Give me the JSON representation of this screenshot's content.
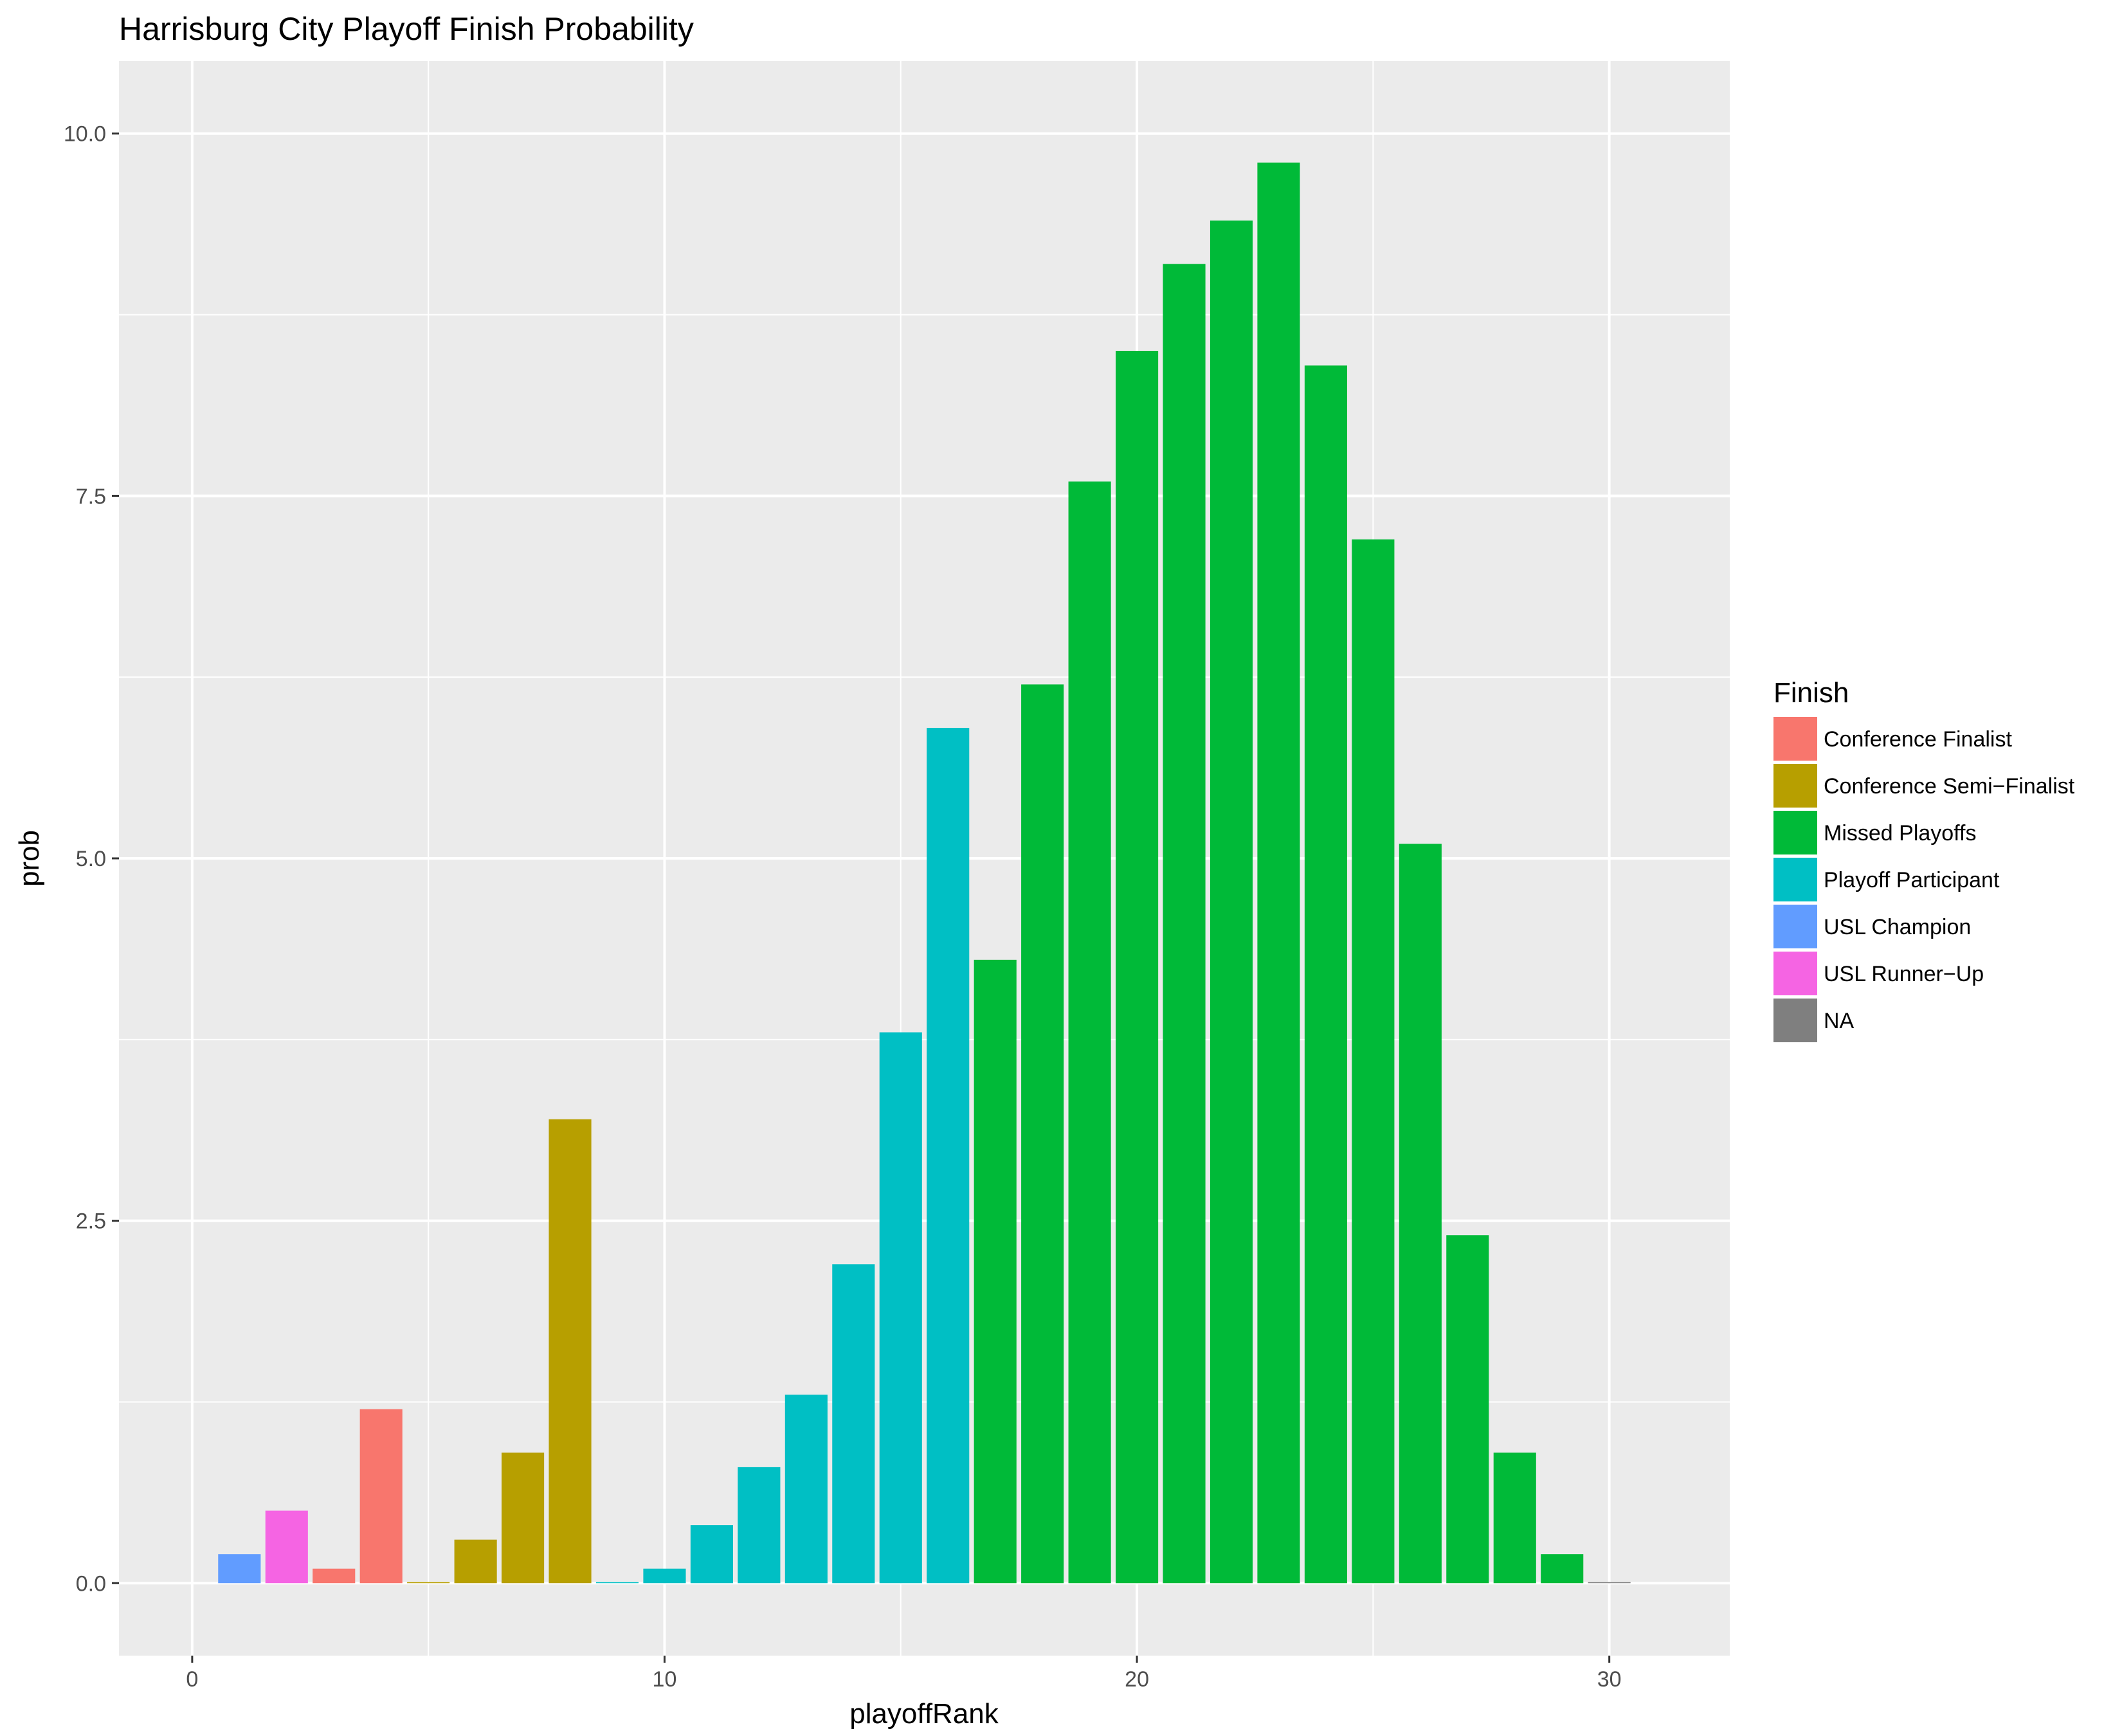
{
  "chart_data": {
    "type": "bar",
    "title": "Harrisburg City Playoff Finish Probability",
    "xlabel": "playoffRank",
    "ylabel": "prob",
    "xlim": [
      -1.55,
      32.55
    ],
    "ylim": [
      -0.5,
      10.5
    ],
    "x_ticks": [
      0,
      10,
      20,
      30
    ],
    "x_tick_labels": [
      "0",
      "10",
      "20",
      "30"
    ],
    "y_ticks": [
      0,
      2.5,
      5,
      7.5,
      10
    ],
    "y_tick_labels": [
      "0.0",
      "2.5",
      "5.0",
      "7.5",
      "10.0"
    ],
    "grid": true,
    "legend": {
      "title": "Finish",
      "position": "right",
      "entries": [
        {
          "name": "Conference Finalist",
          "color": "#F8766D"
        },
        {
          "name": "Conference Semi−Finalist",
          "color": "#B79F00"
        },
        {
          "name": "Missed Playoffs",
          "color": "#00BA38"
        },
        {
          "name": "Playoff Participant",
          "color": "#00BFC4"
        },
        {
          "name": "USL Champion",
          "color": "#619CFF"
        },
        {
          "name": "USL Runner−Up",
          "color": "#F564E3"
        },
        {
          "name": "NA",
          "color": "#7F7F7F"
        }
      ]
    },
    "bars": [
      {
        "x": 1,
        "y": 0.2,
        "finish": "USL Champion"
      },
      {
        "x": 2,
        "y": 0.5,
        "finish": "USL Runner−Up"
      },
      {
        "x": 3,
        "y": 0.1,
        "finish": "Conference Finalist"
      },
      {
        "x": 4,
        "y": 1.2,
        "finish": "Conference Finalist"
      },
      {
        "x": 5,
        "y": 0.0,
        "finish": "Conference Semi−Finalist"
      },
      {
        "x": 6,
        "y": 0.3,
        "finish": "Conference Semi−Finalist"
      },
      {
        "x": 7,
        "y": 0.9,
        "finish": "Conference Semi−Finalist"
      },
      {
        "x": 8,
        "y": 3.2,
        "finish": "Conference Semi−Finalist"
      },
      {
        "x": 9,
        "y": 0.0,
        "finish": "Playoff Participant"
      },
      {
        "x": 10,
        "y": 0.1,
        "finish": "Playoff Participant"
      },
      {
        "x": 11,
        "y": 0.4,
        "finish": "Playoff Participant"
      },
      {
        "x": 12,
        "y": 0.8,
        "finish": "Playoff Participant"
      },
      {
        "x": 13,
        "y": 1.3,
        "finish": "Playoff Participant"
      },
      {
        "x": 14,
        "y": 2.2,
        "finish": "Playoff Participant"
      },
      {
        "x": 15,
        "y": 3.8,
        "finish": "Playoff Participant"
      },
      {
        "x": 16,
        "y": 5.9,
        "finish": "Playoff Participant"
      },
      {
        "x": 17,
        "y": 4.3,
        "finish": "Missed Playoffs"
      },
      {
        "x": 18,
        "y": 6.2,
        "finish": "Missed Playoffs"
      },
      {
        "x": 19,
        "y": 7.6,
        "finish": "Missed Playoffs"
      },
      {
        "x": 20,
        "y": 8.5,
        "finish": "Missed Playoffs"
      },
      {
        "x": 21,
        "y": 9.1,
        "finish": "Missed Playoffs"
      },
      {
        "x": 22,
        "y": 9.4,
        "finish": "Missed Playoffs"
      },
      {
        "x": 23,
        "y": 9.8,
        "finish": "Missed Playoffs"
      },
      {
        "x": 24,
        "y": 8.4,
        "finish": "Missed Playoffs"
      },
      {
        "x": 25,
        "y": 7.2,
        "finish": "Missed Playoffs"
      },
      {
        "x": 26,
        "y": 5.1,
        "finish": "Missed Playoffs"
      },
      {
        "x": 27,
        "y": 2.4,
        "finish": "Missed Playoffs"
      },
      {
        "x": 28,
        "y": 0.9,
        "finish": "Missed Playoffs"
      },
      {
        "x": 29,
        "y": 0.2,
        "finish": "Missed Playoffs"
      },
      {
        "x": 30,
        "y": 0.0,
        "finish": "NA"
      }
    ]
  },
  "colors": {
    "panel_background": "#EBEBEB",
    "grid_line": "#FFFFFF",
    "tick_mark": "#333333",
    "tick_label": "#4D4D4D"
  }
}
